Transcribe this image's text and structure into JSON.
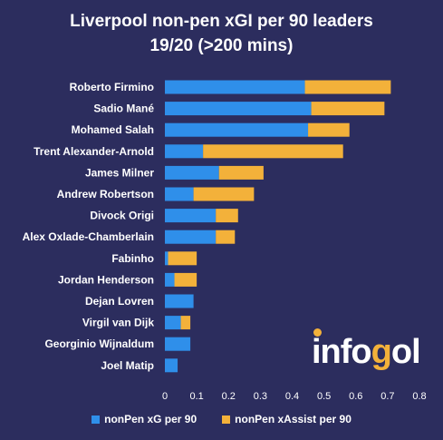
{
  "title_line1": "Liverpool non-pen xGI per 90 leaders",
  "title_line2": "19/20 (>200 mins)",
  "logo": {
    "text_before": "info",
    "text_o": "g",
    "text_after": "ol",
    "dot_color": "#f3b13a"
  },
  "colors": {
    "xg": "#2f8fea",
    "xa": "#f3b13a",
    "background": "#2c2d5e"
  },
  "chart_data": {
    "type": "bar",
    "orientation": "horizontal",
    "stacked": true,
    "categories": [
      "Roberto Firmino",
      "Sadio Mané",
      "Mohamed Salah",
      "Trent Alexander-Arnold",
      "James Milner",
      "Andrew Robertson",
      "Divock Origi",
      "Alex Oxlade-Chamberlain",
      "Fabinho",
      "Jordan Henderson",
      "Dejan Lovren",
      "Virgil van Dijk",
      "Georginio Wijnaldum",
      "Joel Matip"
    ],
    "series": [
      {
        "name": "nonPen xG per 90",
        "values": [
          0.44,
          0.46,
          0.45,
          0.12,
          0.17,
          0.09,
          0.16,
          0.16,
          0.01,
          0.03,
          0.09,
          0.05,
          0.08,
          0.04
        ]
      },
      {
        "name": "nonPen xAssist per 90",
        "values": [
          0.27,
          0.23,
          0.13,
          0.44,
          0.14,
          0.19,
          0.07,
          0.06,
          0.09,
          0.07,
          0.0,
          0.03,
          0.0,
          0.0
        ]
      }
    ],
    "xlim": [
      0,
      0.8
    ],
    "xticks": [
      "0",
      "0.1",
      "0.2",
      "0.3",
      "0.4",
      "0.5",
      "0.6",
      "0.7",
      "0.8"
    ],
    "grid": false,
    "legend_position": "bottom"
  }
}
